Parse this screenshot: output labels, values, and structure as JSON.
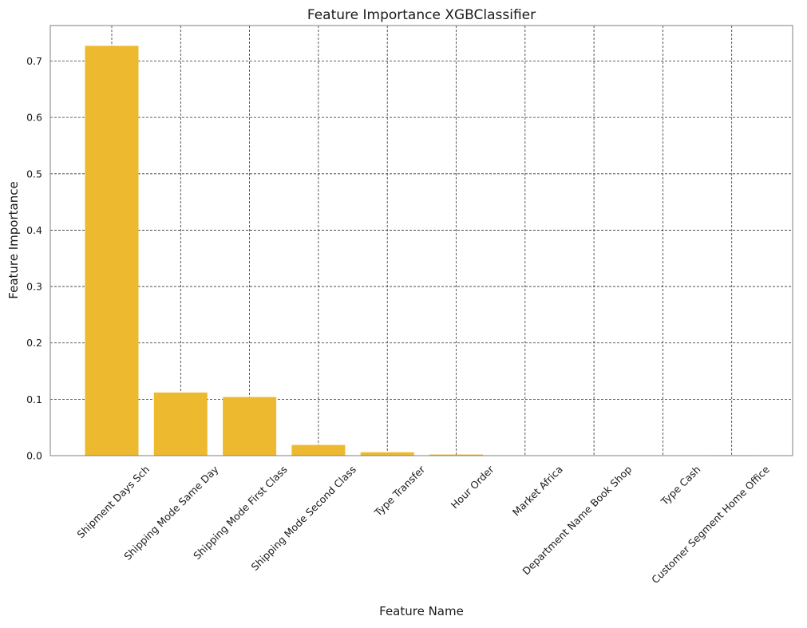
{
  "chart_data": {
    "type": "bar",
    "title": "Feature Importance XGBClassifier",
    "xlabel": "Feature Name",
    "ylabel": "Feature Importance",
    "categories": [
      "Shipment Days Sch",
      "Shipping Mode Same Day",
      "Shipping Mode First Class",
      "Shipping Mode Second Class",
      "Type Transfer",
      "Hour Order",
      "Market Africa",
      "Department Name Book Shop",
      "Type Cash",
      "Customer Segment Home Office"
    ],
    "values": [
      0.727,
      0.112,
      0.104,
      0.019,
      0.006,
      0.002,
      0.0005,
      0.0003,
      0.0002,
      0.0001
    ],
    "y_ticks": [
      "0.0",
      "0.1",
      "0.2",
      "0.3",
      "0.4",
      "0.5",
      "0.6",
      "0.7"
    ],
    "ylim": [
      0,
      0.763
    ],
    "grid": true,
    "colors": {
      "bar": "#EDBA2F",
      "grid": "#333333",
      "spine": "#7f7f7f"
    }
  }
}
